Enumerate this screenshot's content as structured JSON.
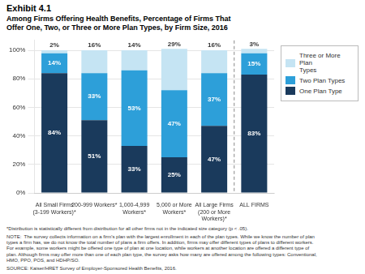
{
  "chart_data": {
    "type": "bar",
    "stacked": true,
    "title": "Exhibit 4.1",
    "subtitle": "Among Firms Offering Health Benefits, Percentage of Firms That\nOffer One, Two, or Three or More Plan Types, by Firm Size, 2016",
    "categories": [
      "All Small Firms\n(3-199 Workers)*",
      "200-999 Workers*",
      "1,000-4,999\nWorkers*",
      "5,000 or More\nWorkers*",
      "All Large Firms\n(200 or More\nWorkers)*",
      "ALL FIRMS"
    ],
    "series": [
      {
        "name": "One Plan Type",
        "color": "#1a3a5c",
        "values": [
          84,
          51,
          33,
          25,
          47,
          83
        ],
        "value_labels": [
          "84%",
          "51%",
          "33%",
          "25%",
          "47%",
          "83%"
        ]
      },
      {
        "name": "Two Plan Types",
        "color": "#2d9fd9",
        "values": [
          14,
          33,
          53,
          47,
          37,
          15
        ],
        "value_labels": [
          "14%",
          "33%",
          "53%",
          "47%",
          "37%",
          "15%"
        ]
      },
      {
        "name": "Three or More Plan\nTypes",
        "color": "#c5e4f3",
        "values": [
          2,
          16,
          14,
          29,
          16,
          3
        ],
        "value_labels": [
          "2%",
          "16%",
          "14%",
          "29%",
          "16%",
          "3%"
        ]
      }
    ],
    "ylim": [
      0,
      107
    ],
    "yticks": [
      {
        "value": 0,
        "label": "0%"
      },
      {
        "value": 20,
        "label": "20%"
      },
      {
        "value": 40,
        "label": "40%"
      },
      {
        "value": 60,
        "label": "60%"
      },
      {
        "value": 80,
        "label": "80%"
      },
      {
        "value": 100,
        "label": "100%"
      }
    ],
    "grid": true,
    "legend": "right",
    "data_labels": true,
    "annotations": [
      "*Distribution is statistically different from distribution for all other firms not in the indicated size category (p < .05).",
      "NOTE:  The survey collects information on a firm's plan with the largest enrollment in each of the plan types. While we know the number of plan\ntypes a firm has, we do not know the total number of plans a firm offers. In addition, firms may offer different types of plans to different workers.\nFor example, some workers might be offered one type of plan at one location, while workers at another location are offered a different type of\nplan. Although firms may offer more than one of each plan type, the survey asks how many are offered among the following types: Conventional,\nHMO, PPO, POS, and HDHP/SO.",
      "SOURCE: Kaiser/HRET Survey of Employer-Sponsored Health Benefits, 2016."
    ]
  }
}
